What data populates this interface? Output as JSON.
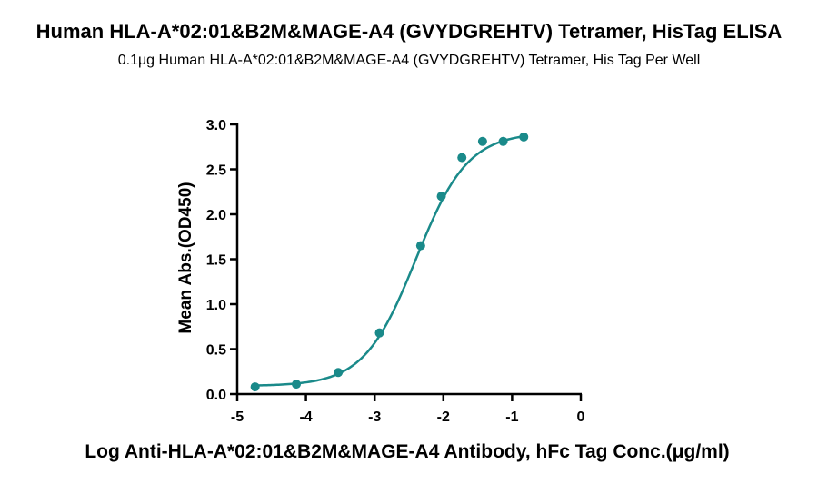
{
  "chart_data": {
    "type": "scatter",
    "title": "Human HLA-A*02:01&B2M&MAGE-A4 (GVYDGREHTV) Tetramer, HisTag ELISA",
    "subtitle": "0.1μg Human HLA-A*02:01&B2M&MAGE-A4 (GVYDGREHTV) Tetramer, His Tag Per Well",
    "xlabel": "Log Anti-HLA-A*02:01&B2M&MAGE-A4 Antibody, hFc Tag Conc.(μg/ml)",
    "ylabel": "Mean Abs.(OD450)",
    "xlim": [
      -5,
      0
    ],
    "ylim": [
      0,
      3.0
    ],
    "xticks": [
      -5,
      -4,
      -3,
      -2,
      -1,
      0
    ],
    "yticks": [
      0.0,
      0.5,
      1.0,
      1.5,
      2.0,
      2.5,
      3.0
    ],
    "x_tick_labels": [
      "-5",
      "-4",
      "-3",
      "-2",
      "-1",
      "0"
    ],
    "y_tick_labels": [
      "0.0",
      "0.5",
      "1.0",
      "1.5",
      "2.0",
      "2.5",
      "3.0"
    ],
    "grid": false,
    "series": [
      {
        "color": "#1a8a8a",
        "points": [
          {
            "x": -4.74,
            "y": 0.08
          },
          {
            "x": -4.14,
            "y": 0.11
          },
          {
            "x": -3.53,
            "y": 0.24
          },
          {
            "x": -2.93,
            "y": 0.68
          },
          {
            "x": -2.33,
            "y": 1.65
          },
          {
            "x": -2.03,
            "y": 2.2
          },
          {
            "x": -1.73,
            "y": 2.63
          },
          {
            "x": -1.43,
            "y": 2.81
          },
          {
            "x": -1.13,
            "y": 2.81
          },
          {
            "x": -0.83,
            "y": 2.86
          }
        ],
        "fit": {
          "bottom": 0.09,
          "top": 2.91,
          "log_ec50": -2.4,
          "hill_slope": 1.15
        }
      }
    ]
  }
}
